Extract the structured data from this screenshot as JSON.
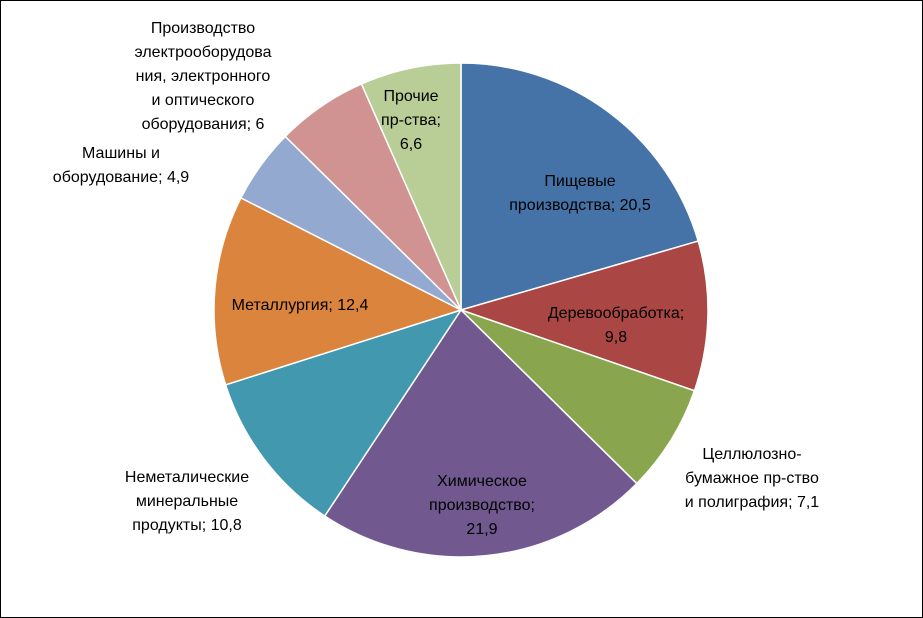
{
  "chart_data": {
    "type": "pie",
    "title": "",
    "slices": [
      {
        "label_lines": [
          "Пищевые",
          "производства; 20,5"
        ],
        "value": 20.5,
        "color": "#4572A7"
      },
      {
        "label_lines": [
          "Деревообработка;",
          "9,8"
        ],
        "value": 9.8,
        "color": "#AA4643"
      },
      {
        "label_lines": [
          "Целлюлозно-",
          "бумажное пр-ство",
          "и полиграфия; 7,1"
        ],
        "value": 7.1,
        "color": "#89A54E"
      },
      {
        "label_lines": [
          "Химическое",
          "производство;",
          "21,9"
        ],
        "value": 21.9,
        "color": "#71588F"
      },
      {
        "label_lines": [
          "Неметалические",
          "минеральные",
          "продукты; 10,8"
        ],
        "value": 10.8,
        "color": "#4198AF"
      },
      {
        "label_lines": [
          "Металлургия; 12,4"
        ],
        "value": 12.4,
        "color": "#DB843D"
      },
      {
        "label_lines": [
          "Машины и",
          "оборудование; 4,9"
        ],
        "value": 4.9,
        "color": "#93A9CF"
      },
      {
        "label_lines": [
          "Производство",
          "электрооборудова",
          "ния, электронного",
          "и оптического",
          "оборудования; 6"
        ],
        "value": 6,
        "color": "#D19392"
      },
      {
        "label_lines": [
          "Прочие",
          "пр-ства;",
          "6,6"
        ],
        "value": 6.6,
        "color": "#B9CD96"
      }
    ]
  }
}
